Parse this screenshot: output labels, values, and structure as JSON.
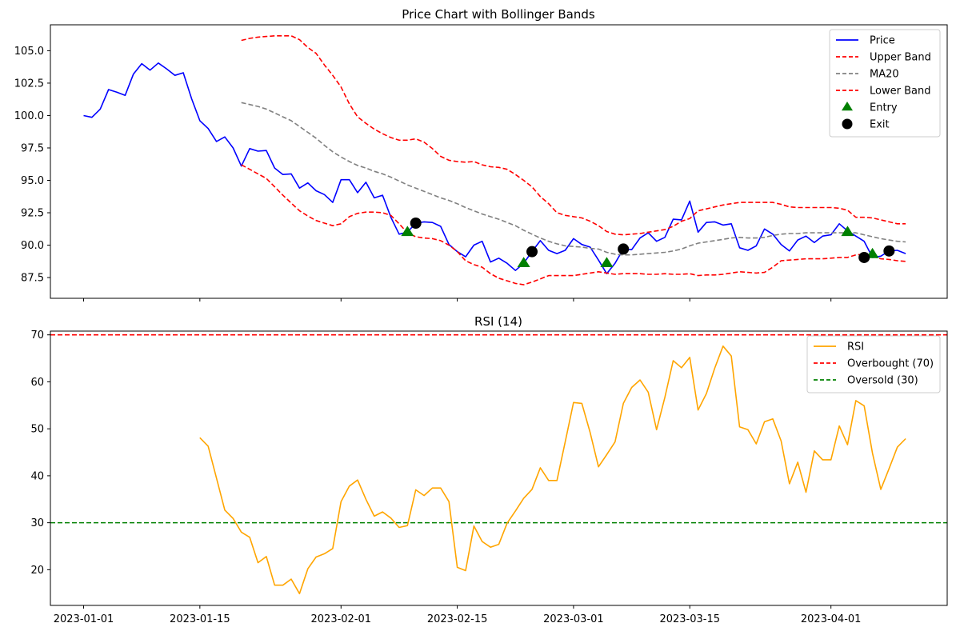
{
  "chart_data": [
    {
      "type": "line",
      "title": "Price Chart with Bollinger Bands",
      "xlabel": "",
      "ylabel": "",
      "legend": "top-right",
      "grid": false,
      "xlim": [
        "2022-12-28",
        "2023-04-15"
      ],
      "ylim": [
        85.9,
        107.0
      ],
      "x_ticks": [
        "2023-01-01",
        "2023-01-15",
        "2023-02-01",
        "2023-02-15",
        "2023-03-01",
        "2023-03-15",
        "2023-04-01"
      ],
      "y_ticks": [
        "87.5",
        "90.0",
        "92.5",
        "95.0",
        "97.5",
        "100.0",
        "102.5",
        "105.0"
      ],
      "x_start": "2023-01-01",
      "x_end": "2023-04-10",
      "series": [
        {
          "name": "Price",
          "color": "#0000ff",
          "style": "solid",
          "values": [
            100.0,
            99.86,
            100.5,
            102.0,
            101.8,
            101.55,
            103.2,
            104.0,
            103.5,
            104.05,
            103.6,
            103.1,
            103.3,
            101.3,
            99.6,
            99.0,
            98.0,
            98.35,
            97.5,
            96.1,
            97.45,
            97.25,
            97.3,
            95.95,
            95.45,
            95.5,
            94.4,
            94.8,
            94.2,
            93.9,
            93.3,
            95.05,
            95.05,
            94.05,
            94.85,
            93.65,
            93.85,
            92.15,
            90.85,
            91.0,
            91.7,
            91.8,
            91.75,
            91.45,
            90.05,
            89.5,
            89.1,
            90.0,
            90.3,
            88.7,
            89.0,
            88.6,
            88.05,
            88.6,
            89.5,
            90.35,
            89.6,
            89.35,
            89.6,
            90.5,
            90.05,
            89.85,
            88.85,
            87.8,
            88.6,
            89.7,
            89.65,
            90.55,
            90.95,
            90.3,
            90.6,
            92.0,
            91.95,
            93.4,
            91.0,
            91.75,
            91.8,
            91.55,
            91.65,
            89.8,
            89.6,
            89.95,
            91.25,
            90.85,
            90.05,
            89.55,
            90.4,
            90.7,
            90.2,
            90.7,
            90.8,
            91.65,
            91.1,
            90.7,
            90.3,
            89.05,
            89.15,
            89.55,
            89.6,
            89.35
          ]
        },
        {
          "name": "Upper Band",
          "color": "#ff0000",
          "style": "dashed",
          "values": [
            null,
            null,
            null,
            null,
            null,
            null,
            null,
            null,
            null,
            null,
            null,
            null,
            null,
            null,
            null,
            null,
            null,
            null,
            null,
            105.8,
            105.95,
            106.05,
            106.1,
            106.15,
            106.15,
            106.15,
            105.85,
            105.25,
            104.8,
            103.9,
            103.1,
            102.2,
            100.9,
            99.9,
            99.4,
            98.95,
            98.6,
            98.3,
            98.1,
            98.1,
            98.2,
            97.95,
            97.45,
            96.85,
            96.55,
            96.45,
            96.4,
            96.45,
            96.2,
            96.05,
            96.0,
            95.85,
            95.45,
            95.0,
            94.5,
            93.75,
            93.2,
            92.5,
            92.3,
            92.2,
            92.1,
            91.85,
            91.5,
            91.05,
            90.85,
            90.8,
            90.85,
            90.9,
            91.0,
            91.1,
            91.2,
            91.45,
            91.85,
            92.05,
            92.65,
            92.8,
            92.95,
            93.1,
            93.2,
            93.3,
            93.3,
            93.3,
            93.3,
            93.3,
            93.15,
            92.95,
            92.9,
            92.9,
            92.9,
            92.9,
            92.9,
            92.85,
            92.7,
            92.15,
            92.15,
            92.1,
            91.95,
            91.8,
            91.65,
            91.65
          ]
        },
        {
          "name": "MA20",
          "color": "#808080",
          "style": "dashed",
          "values": [
            null,
            null,
            null,
            null,
            null,
            null,
            null,
            null,
            null,
            null,
            null,
            null,
            null,
            null,
            null,
            null,
            null,
            null,
            null,
            101.0,
            100.85,
            100.7,
            100.5,
            100.2,
            99.9,
            99.6,
            99.15,
            98.7,
            98.25,
            97.7,
            97.2,
            96.8,
            96.45,
            96.15,
            95.95,
            95.7,
            95.5,
            95.25,
            94.95,
            94.65,
            94.4,
            94.15,
            93.9,
            93.65,
            93.45,
            93.2,
            92.9,
            92.65,
            92.4,
            92.2,
            92.0,
            91.75,
            91.5,
            91.15,
            90.85,
            90.55,
            90.3,
            90.1,
            89.95,
            89.9,
            89.85,
            89.75,
            89.7,
            89.45,
            89.3,
            89.25,
            89.25,
            89.3,
            89.35,
            89.4,
            89.45,
            89.55,
            89.7,
            89.95,
            90.15,
            90.25,
            90.35,
            90.45,
            90.55,
            90.6,
            90.55,
            90.55,
            90.6,
            90.75,
            90.85,
            90.9,
            90.9,
            90.95,
            90.95,
            90.95,
            90.95,
            90.95,
            90.95,
            90.95,
            90.8,
            90.65,
            90.5,
            90.4,
            90.3,
            90.25
          ]
        },
        {
          "name": "Lower Band",
          "color": "#ff0000",
          "style": "dashed",
          "values": [
            null,
            null,
            null,
            null,
            null,
            null,
            null,
            null,
            null,
            null,
            null,
            null,
            null,
            null,
            null,
            null,
            null,
            null,
            null,
            96.2,
            95.85,
            95.5,
            95.15,
            94.5,
            93.85,
            93.25,
            92.65,
            92.25,
            91.9,
            91.7,
            91.5,
            91.65,
            92.2,
            92.45,
            92.55,
            92.55,
            92.5,
            92.3,
            91.65,
            90.95,
            90.65,
            90.55,
            90.5,
            90.35,
            90.0,
            89.5,
            88.8,
            88.5,
            88.3,
            87.8,
            87.45,
            87.25,
            87.05,
            86.95,
            87.15,
            87.4,
            87.65,
            87.65,
            87.65,
            87.65,
            87.75,
            87.85,
            87.95,
            87.85,
            87.75,
            87.8,
            87.8,
            87.8,
            87.75,
            87.75,
            87.8,
            87.75,
            87.75,
            87.8,
            87.65,
            87.7,
            87.7,
            87.75,
            87.85,
            87.95,
            87.9,
            87.85,
            87.9,
            88.3,
            88.8,
            88.85,
            88.9,
            88.95,
            88.95,
            88.95,
            89.0,
            89.05,
            89.05,
            89.25,
            89.3,
            89.15,
            88.95,
            88.9,
            88.8,
            88.75
          ]
        }
      ],
      "markers": [
        {
          "name": "Entry",
          "shape": "triangle",
          "color": "#008000",
          "points": [
            [
              "2023-02-09",
              91.0
            ],
            [
              "2023-02-23",
              88.6
            ],
            [
              "2023-03-05",
              88.6
            ],
            [
              "2023-04-03",
              91.0
            ],
            [
              "2023-04-06",
              89.3
            ]
          ]
        },
        {
          "name": "Exit",
          "shape": "circle",
          "color": "#000000",
          "points": [
            [
              "2023-02-10",
              91.7
            ],
            [
              "2023-02-24",
              89.5
            ],
            [
              "2023-03-07",
              89.7
            ],
            [
              "2023-04-05",
              89.05
            ],
            [
              "2023-04-08",
              89.55
            ]
          ]
        }
      ]
    },
    {
      "type": "line",
      "title": "RSI (14)",
      "xlabel": "",
      "ylabel": "",
      "legend": "top-right",
      "grid": false,
      "xlim": [
        "2022-12-28",
        "2023-04-15"
      ],
      "ylim": [
        12.4,
        70.8
      ],
      "x_ticks": [
        "2023-01-01",
        "2023-01-15",
        "2023-02-01",
        "2023-02-15",
        "2023-03-01",
        "2023-03-15",
        "2023-04-01"
      ],
      "y_ticks": [
        "20",
        "30",
        "40",
        "50",
        "60",
        "70"
      ],
      "x_start": "2023-01-01",
      "x_end": "2023-04-10",
      "series": [
        {
          "name": "RSI",
          "color": "#ffa500",
          "style": "solid",
          "values": [
            null,
            null,
            null,
            null,
            null,
            null,
            null,
            null,
            null,
            null,
            null,
            null,
            null,
            null,
            48.1,
            46.3,
            39.5,
            32.7,
            30.9,
            28.0,
            26.9,
            21.5,
            22.8,
            16.7,
            16.7,
            18.0,
            14.9,
            20.2,
            22.7,
            23.4,
            24.5,
            34.5,
            37.8,
            39.1,
            35.0,
            31.4,
            32.3,
            31.0,
            29.0,
            29.4,
            37.0,
            35.8,
            37.4,
            37.4,
            34.5,
            20.5,
            19.8,
            29.3,
            26.0,
            24.8,
            25.4,
            29.9,
            32.5,
            35.2,
            37.1,
            41.7,
            39.0,
            39.0,
            47.2,
            55.6,
            55.4,
            49.2,
            41.9,
            44.5,
            47.2,
            55.4,
            58.8,
            60.4,
            57.8,
            49.8,
            56.7,
            64.5,
            63.0,
            65.2,
            54.0,
            57.5,
            62.9,
            67.6,
            65.5,
            50.4,
            49.8,
            46.8,
            51.5,
            52.1,
            47.4,
            38.3,
            42.9,
            36.5,
            45.3,
            43.4,
            43.4,
            50.6,
            46.6,
            56.0,
            54.9,
            44.8,
            37.1,
            41.5,
            46.1,
            47.9
          ]
        }
      ],
      "reference_lines": [
        {
          "name": "Overbought (70)",
          "value": 70,
          "color": "#ff0000",
          "style": "dashed"
        },
        {
          "name": "Oversold (30)",
          "value": 30,
          "color": "#008000",
          "style": "dashed"
        }
      ]
    }
  ]
}
